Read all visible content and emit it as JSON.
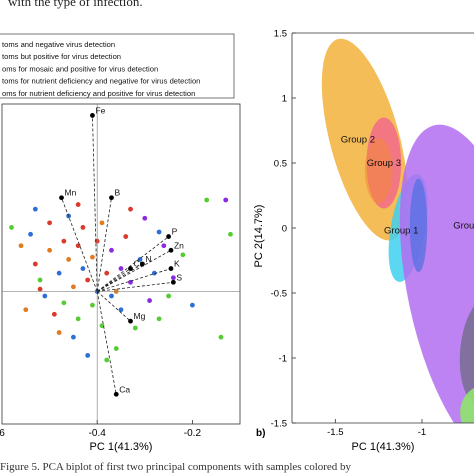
{
  "caption_top": "with the type of infection.",
  "caption_bottom": "Figure 5. PCA biplot of first two principal components with samples colored by",
  "legend": [
    {
      "label": "toms and negative virus detection",
      "color": "#2d6fd6"
    },
    {
      "label": "toms but positive for virus  detection",
      "color": "#e07b1f"
    },
    {
      "label": "oms for mosaic and positive for virus detection",
      "color": "#d93a2b"
    },
    {
      "label": "toms for nutrient deficiency and negative for virus detection",
      "color": "#55cc33"
    },
    {
      "label": "oms for nutrient deficiency and positive for virus detection",
      "color": "#8a2be2"
    }
  ],
  "chart_data": [
    {
      "type": "scatter",
      "title": "",
      "xlabel": "PC 1(41.3%)",
      "ylabel": "",
      "xlim": [
        -0.6,
        -0.1
      ],
      "ylim": [
        -0.58,
        0.82
      ],
      "xticks": [
        -0.4,
        -0.2
      ],
      "xtick_labels": [
        "-0.4",
        "-0.2"
      ],
      "edge_tick_label": "6",
      "loadings": [
        {
          "name": "Fe",
          "x": -0.41,
          "y": 0.77
        },
        {
          "name": "Mn",
          "x": -0.475,
          "y": 0.41
        },
        {
          "name": "B",
          "x": -0.37,
          "y": 0.41
        },
        {
          "name": "P",
          "x": -0.25,
          "y": 0.24
        },
        {
          "name": "Zn",
          "x": -0.245,
          "y": 0.18
        },
        {
          "name": "N",
          "x": -0.305,
          "y": 0.12
        },
        {
          "name": "Cu",
          "x": -0.33,
          "y": 0.1
        },
        {
          "name": "K",
          "x": -0.245,
          "y": 0.1
        },
        {
          "name": "S",
          "x": -0.24,
          "y": 0.04
        },
        {
          "name": "Mg",
          "x": -0.33,
          "y": -0.13
        },
        {
          "name": "Ca",
          "x": -0.36,
          "y": -0.45
        }
      ],
      "points": [
        {
          "x": -0.58,
          "y": 0.28,
          "g": 3
        },
        {
          "x": -0.56,
          "y": 0.2,
          "g": 1
        },
        {
          "x": -0.54,
          "y": 0.25,
          "g": 0
        },
        {
          "x": -0.53,
          "y": 0.12,
          "g": 2
        },
        {
          "x": -0.52,
          "y": 0.05,
          "g": 3
        },
        {
          "x": -0.51,
          "y": -0.02,
          "g": 0
        },
        {
          "x": -0.5,
          "y": 0.18,
          "g": 1
        },
        {
          "x": -0.5,
          "y": 0.3,
          "g": 2
        },
        {
          "x": -0.49,
          "y": -0.1,
          "g": 2
        },
        {
          "x": -0.48,
          "y": 0.08,
          "g": 0
        },
        {
          "x": -0.47,
          "y": 0.22,
          "g": 2
        },
        {
          "x": -0.47,
          "y": -0.05,
          "g": 3
        },
        {
          "x": -0.46,
          "y": 0.14,
          "g": 1
        },
        {
          "x": -0.46,
          "y": 0.33,
          "g": 0
        },
        {
          "x": -0.45,
          "y": -0.2,
          "g": 0
        },
        {
          "x": -0.45,
          "y": 0.02,
          "g": 1
        },
        {
          "x": -0.44,
          "y": 0.2,
          "g": 2
        },
        {
          "x": -0.44,
          "y": -0.12,
          "g": 3
        },
        {
          "x": -0.43,
          "y": 0.1,
          "g": 0
        },
        {
          "x": -0.43,
          "y": 0.28,
          "g": 2
        },
        {
          "x": -0.42,
          "y": -0.28,
          "g": 0
        },
        {
          "x": -0.42,
          "y": 0.05,
          "g": 2
        },
        {
          "x": -0.41,
          "y": 0.15,
          "g": 1
        },
        {
          "x": -0.41,
          "y": -0.06,
          "g": 3
        },
        {
          "x": -0.4,
          "y": 0.22,
          "g": 2
        },
        {
          "x": -0.4,
          "y": 0.0,
          "g": 0
        },
        {
          "x": -0.39,
          "y": -0.15,
          "g": 3
        },
        {
          "x": -0.39,
          "y": 0.3,
          "g": 1
        },
        {
          "x": -0.38,
          "y": 0.08,
          "g": 2
        },
        {
          "x": -0.37,
          "y": -0.02,
          "g": 0
        },
        {
          "x": -0.37,
          "y": 0.18,
          "g": 4
        },
        {
          "x": -0.36,
          "y": -0.25,
          "g": 3
        },
        {
          "x": -0.35,
          "y": 0.1,
          "g": 4
        },
        {
          "x": -0.35,
          "y": -0.08,
          "g": 0
        },
        {
          "x": -0.34,
          "y": 0.24,
          "g": 2
        },
        {
          "x": -0.33,
          "y": 0.04,
          "g": 4
        },
        {
          "x": -0.32,
          "y": -0.16,
          "g": 3
        },
        {
          "x": -0.31,
          "y": 0.14,
          "g": 0
        },
        {
          "x": -0.3,
          "y": 0.32,
          "g": 4
        },
        {
          "x": -0.29,
          "y": -0.04,
          "g": 4
        },
        {
          "x": -0.28,
          "y": 0.08,
          "g": 0
        },
        {
          "x": -0.27,
          "y": -0.12,
          "g": 3
        },
        {
          "x": -0.26,
          "y": 0.2,
          "g": 4
        },
        {
          "x": -0.25,
          "y": -0.02,
          "g": 3
        },
        {
          "x": -0.24,
          "y": 0.06,
          "g": 4
        },
        {
          "x": -0.22,
          "y": 0.16,
          "g": 3
        },
        {
          "x": -0.2,
          "y": -0.06,
          "g": 0
        },
        {
          "x": -0.17,
          "y": 0.4,
          "g": 3
        },
        {
          "x": -0.14,
          "y": -0.2,
          "g": 3
        },
        {
          "x": -0.13,
          "y": 0.4,
          "g": 4
        },
        {
          "x": -0.12,
          "y": 0.25,
          "g": 3
        },
        {
          "x": -0.55,
          "y": -0.08,
          "g": 1
        },
        {
          "x": -0.53,
          "y": 0.36,
          "g": 0
        },
        {
          "x": -0.48,
          "y": -0.18,
          "g": 1
        },
        {
          "x": -0.44,
          "y": 0.38,
          "g": 2
        },
        {
          "x": -0.38,
          "y": -0.3,
          "g": 3
        },
        {
          "x": -0.33,
          "y": 0.36,
          "g": 2
        },
        {
          "x": -0.27,
          "y": 0.26,
          "g": 0
        },
        {
          "x": -0.36,
          "y": 0.0,
          "g": 1
        },
        {
          "x": -0.52,
          "y": 0.01,
          "g": 2
        }
      ]
    },
    {
      "type": "scatter",
      "panel_label": "b)",
      "title": "",
      "xlabel": "PC 1(41.3%)",
      "ylabel": "PC 2(14.7%)",
      "xlim": [
        -1.75,
        -0.7
      ],
      "ylim": [
        -1.5,
        1.5
      ],
      "xticks": [
        -1.5,
        -1
      ],
      "xtick_labels": [
        "-1.5",
        "-1"
      ],
      "yticks": [
        1.5,
        1,
        0.5,
        0,
        -0.5,
        -1,
        -1.5
      ],
      "ytick_labels": [
        "1.5",
        "1",
        "0.5",
        "0",
        "-0.5",
        "-1",
        "-1.5"
      ],
      "groups": [
        {
          "name": "Group 2",
          "cx": -1.33,
          "cy": 0.68,
          "rx": 0.2,
          "ry": 0.8,
          "angle": -15,
          "color": "#f3b23b"
        },
        {
          "name": "Group 3",
          "cx": -1.22,
          "cy": 0.5,
          "rx": 0.1,
          "ry": 0.35,
          "angle": 0,
          "color": "#f26b8a"
        },
        {
          "name": "Group 1",
          "cx": -1.08,
          "cy": 0.0,
          "rx": 0.1,
          "ry": 0.42,
          "angle": 10,
          "color": "#3fd0f0"
        },
        {
          "name": "Group",
          "cx": -0.72,
          "cy": -0.5,
          "rx": 0.36,
          "ry": 1.32,
          "angle": -12,
          "color": "#b36df0"
        }
      ],
      "extra_shapes": [
        {
          "cx": -0.64,
          "cy": -0.95,
          "rx": 0.14,
          "ry": 0.42,
          "angle": 5,
          "color": "#7a6f95"
        },
        {
          "cx": -0.62,
          "cy": -1.42,
          "rx": 0.16,
          "ry": 0.22,
          "angle": 0,
          "color": "#8ee56c"
        }
      ]
    }
  ]
}
